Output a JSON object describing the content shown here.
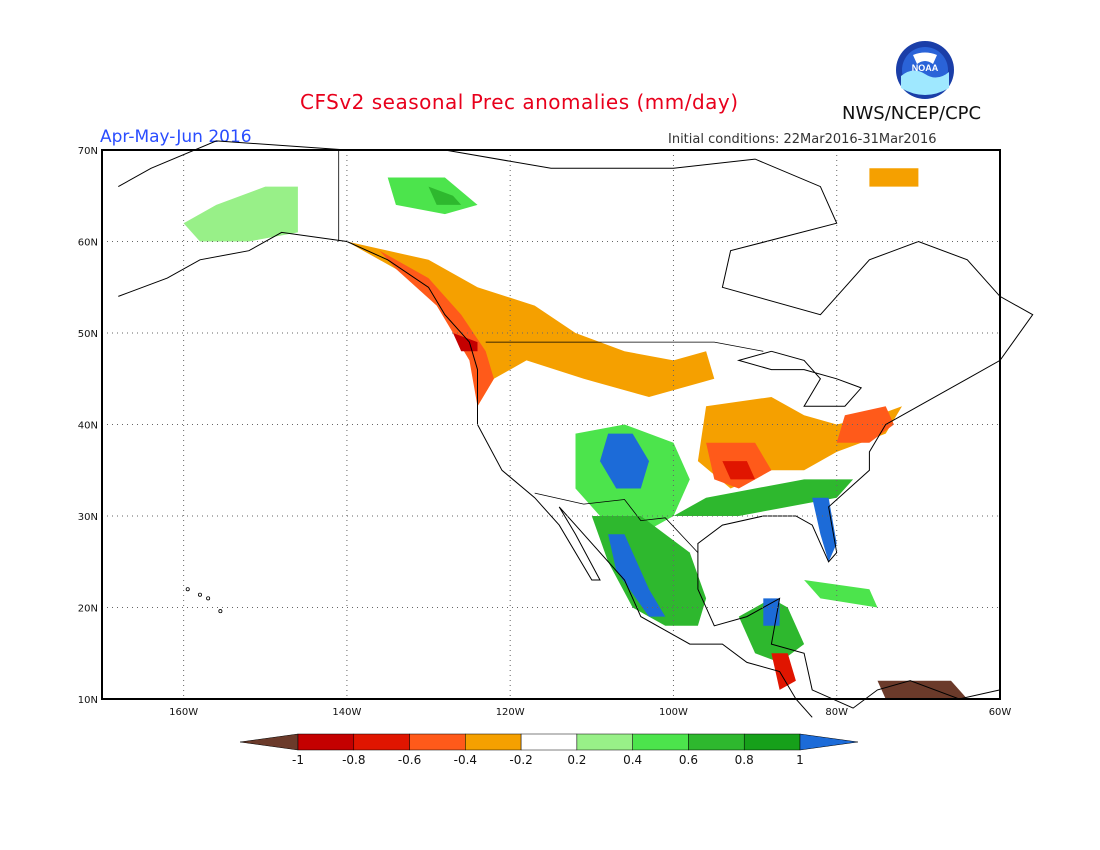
{
  "header": {
    "title": "CFSv2 seasonal Prec anomalies (mm/day)",
    "season": "Apr-May-Jun 2016",
    "initial_conditions": "Initial conditions: 22Mar2016-31Mar2016",
    "agency": "NWS/NCEP/CPC",
    "logo_text": "NOAA"
  },
  "map": {
    "projection": "lat-lon",
    "lon_range": [
      -170,
      -60
    ],
    "lat_range": [
      10,
      70
    ],
    "lat_labels": [
      "70N",
      "60N",
      "50N",
      "40N",
      "30N",
      "20N",
      "10N"
    ],
    "lon_labels": [
      "160W",
      "140W",
      "120W",
      "100W",
      "80W",
      "60W"
    ],
    "grid": "dotted"
  },
  "colorbar": {
    "labels": [
      "-1",
      "-0.8",
      "-0.6",
      "-0.4",
      "-0.2",
      "0.2",
      "0.4",
      "0.6",
      "0.8",
      "1"
    ],
    "colors": [
      "#6b3a2a",
      "#c40000",
      "#e01500",
      "#ff5a1a",
      "#f5a000",
      "#ffffff",
      "#98f088",
      "#4ce44c",
      "#2eb82e",
      "#16a01a",
      "#1c6bd8"
    ]
  },
  "colors": {
    "anom_-1": "#6b3a2a",
    "anom_-0.8": "#c40000",
    "anom_-0.6": "#e01500",
    "anom_-0.4": "#ff5a1a",
    "anom_-0.2": "#f5a000",
    "anom_0.2": "#98f088",
    "anom_0.4": "#4ce44c",
    "anom_0.6": "#2eb82e",
    "anom_0.8": "#16a01a",
    "anom_1": "#1c6bd8"
  },
  "regions": [
    {
      "name": "alaska",
      "level": "0.2",
      "poly": [
        [
          -160,
          62
        ],
        [
          -156,
          64
        ],
        [
          -150,
          66
        ],
        [
          -146,
          66
        ],
        [
          -146,
          61
        ],
        [
          -152,
          60
        ],
        [
          -158,
          60
        ]
      ]
    },
    {
      "name": "nw-canada-green",
      "level": "0.4",
      "poly": [
        [
          -135,
          67
        ],
        [
          -128,
          67
        ],
        [
          -124,
          64
        ],
        [
          -128,
          63
        ],
        [
          -134,
          64
        ]
      ]
    },
    {
      "name": "nw-canada-core",
      "level": "0.6",
      "poly": [
        [
          -130,
          66
        ],
        [
          -127,
          65
        ],
        [
          -126,
          64
        ],
        [
          -129,
          64
        ]
      ]
    },
    {
      "name": "nw-coast-orange",
      "level": "-0.2",
      "poly": [
        [
          -140,
          60
        ],
        [
          -130,
          58
        ],
        [
          -124,
          55
        ],
        [
          -117,
          53
        ],
        [
          -112,
          50
        ],
        [
          -106,
          48
        ],
        [
          -100,
          47
        ],
        [
          -96,
          48
        ],
        [
          -95,
          45
        ],
        [
          -103,
          43
        ],
        [
          -111,
          45
        ],
        [
          -118,
          47
        ],
        [
          -122,
          45
        ],
        [
          -124,
          42
        ],
        [
          -125,
          50
        ],
        [
          -132,
          56
        ],
        [
          -138,
          59
        ]
      ]
    },
    {
      "name": "nw-coast-red",
      "level": "-0.4",
      "poly": [
        [
          -136,
          59
        ],
        [
          -130,
          56
        ],
        [
          -126,
          52
        ],
        [
          -123,
          48
        ],
        [
          -122,
          45
        ],
        [
          -124,
          42
        ],
        [
          -125,
          47
        ],
        [
          -129,
          53
        ],
        [
          -134,
          57
        ]
      ]
    },
    {
      "name": "oregon-dark",
      "level": "-0.8",
      "poly": [
        [
          -127,
          50
        ],
        [
          -124,
          49
        ],
        [
          -124,
          48
        ],
        [
          -126,
          48
        ]
      ]
    },
    {
      "name": "midwest-east-orange",
      "level": "-0.2",
      "poly": [
        [
          -96,
          42
        ],
        [
          -88,
          43
        ],
        [
          -84,
          41
        ],
        [
          -80,
          40
        ],
        [
          -75,
          41
        ],
        [
          -72,
          42
        ],
        [
          -74,
          39
        ],
        [
          -80,
          37
        ],
        [
          -84,
          35
        ],
        [
          -88,
          35
        ],
        [
          -93,
          33
        ],
        [
          -97,
          36
        ]
      ]
    },
    {
      "name": "arkansas-red",
      "level": "-0.4",
      "poly": [
        [
          -96,
          38
        ],
        [
          -90,
          38
        ],
        [
          -88,
          35
        ],
        [
          -92,
          33
        ],
        [
          -95,
          34
        ]
      ]
    },
    {
      "name": "arkansas-core",
      "level": "-0.6",
      "poly": [
        [
          -94,
          36
        ],
        [
          -91,
          36
        ],
        [
          -90,
          34
        ],
        [
          -93,
          34
        ]
      ]
    },
    {
      "name": "ne-red",
      "level": "-0.4",
      "poly": [
        [
          -79,
          41
        ],
        [
          -74,
          42
        ],
        [
          -73,
          40
        ],
        [
          -76,
          38
        ],
        [
          -80,
          38
        ]
      ]
    },
    {
      "name": "sw-green",
      "level": "0.4",
      "poly": [
        [
          -112,
          39
        ],
        [
          -106,
          40
        ],
        [
          -100,
          38
        ],
        [
          -98,
          34
        ],
        [
          -100,
          30
        ],
        [
          -104,
          28
        ],
        [
          -108,
          29
        ],
        [
          -112,
          33
        ]
      ]
    },
    {
      "name": "new-mexico-blue",
      "level": "1",
      "poly": [
        [
          -108,
          39
        ],
        [
          -105,
          39
        ],
        [
          -103,
          36
        ],
        [
          -104,
          33
        ],
        [
          -107,
          33
        ],
        [
          -109,
          36
        ]
      ]
    },
    {
      "name": "mexico-green",
      "level": "0.6",
      "poly": [
        [
          -110,
          30
        ],
        [
          -104,
          30
        ],
        [
          -98,
          26
        ],
        [
          -96,
          21
        ],
        [
          -97,
          18
        ],
        [
          -101,
          18
        ],
        [
          -105,
          20
        ],
        [
          -108,
          25
        ]
      ]
    },
    {
      "name": "mexico-blue",
      "level": "1",
      "poly": [
        [
          -108,
          28
        ],
        [
          -106,
          28
        ],
        [
          -103,
          22
        ],
        [
          -101,
          19
        ],
        [
          -103,
          19
        ],
        [
          -107,
          24
        ]
      ]
    },
    {
      "name": "gulf-green",
      "level": "0.6",
      "poly": [
        [
          -100,
          30
        ],
        [
          -92,
          30
        ],
        [
          -86,
          31
        ],
        [
          -80,
          32
        ],
        [
          -78,
          34
        ],
        [
          -84,
          34
        ],
        [
          -90,
          33
        ],
        [
          -96,
          32
        ]
      ]
    },
    {
      "name": "florida-blue",
      "level": "1",
      "poly": [
        [
          -83,
          32
        ],
        [
          -81,
          32
        ],
        [
          -80,
          27
        ],
        [
          -81,
          25
        ],
        [
          -82,
          28
        ]
      ]
    },
    {
      "name": "central-america-green",
      "level": "0.6",
      "poly": [
        [
          -92,
          19
        ],
        [
          -88,
          21
        ],
        [
          -86,
          20
        ],
        [
          -84,
          16
        ],
        [
          -87,
          14
        ],
        [
          -90,
          15
        ]
      ]
    },
    {
      "name": "yucatan-blue",
      "level": "1",
      "poly": [
        [
          -89,
          21
        ],
        [
          -87,
          21
        ],
        [
          -87,
          18
        ],
        [
          -89,
          18
        ]
      ]
    },
    {
      "name": "central-america-red",
      "level": "-0.6",
      "poly": [
        [
          -88,
          15
        ],
        [
          -86,
          15
        ],
        [
          -85,
          12
        ],
        [
          -87,
          11
        ]
      ]
    },
    {
      "name": "venezuela-brown",
      "level": "-1",
      "poly": [
        [
          -75,
          12
        ],
        [
          -66,
          12
        ],
        [
          -64,
          10
        ],
        [
          -74,
          10
        ]
      ]
    },
    {
      "name": "greenland-orange",
      "level": "-0.2",
      "poly": [
        [
          -76,
          68
        ],
        [
          -70,
          68
        ],
        [
          -70,
          66
        ],
        [
          -76,
          66
        ]
      ]
    },
    {
      "name": "cuba-green",
      "level": "0.4",
      "poly": [
        [
          -84,
          23
        ],
        [
          -76,
          22
        ],
        [
          -75,
          20
        ],
        [
          -82,
          21
        ]
      ]
    }
  ]
}
